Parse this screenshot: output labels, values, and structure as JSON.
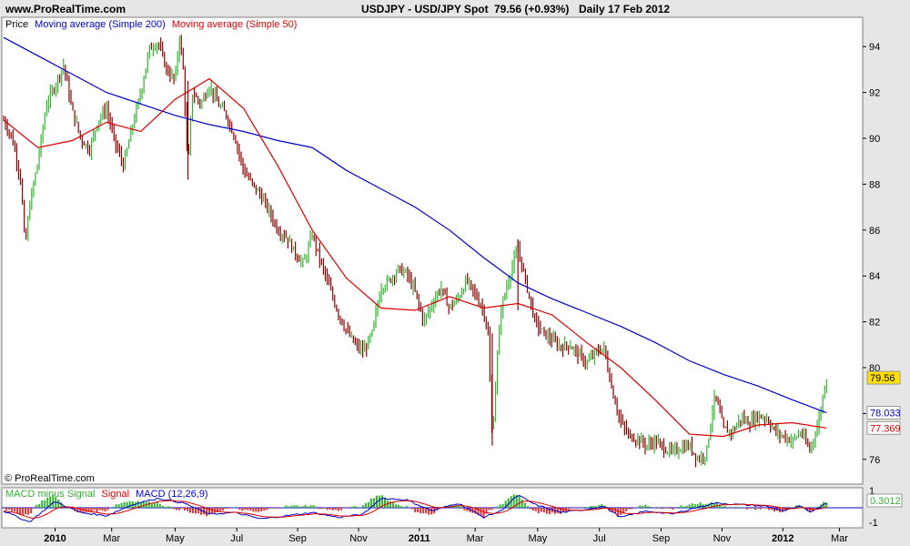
{
  "header": {
    "site": "www.ProRealTime.com",
    "instrument": "USDJPY - USD/JPY Spot",
    "price_change": "79.56 (+0.93%)",
    "period_date": "Daily  17 Feb 2012"
  },
  "copyright": "© ProRealTime.com",
  "colors": {
    "background": "#e6e6e6",
    "panel": "#ffffff",
    "up_bar": "#33b233",
    "down_bar": "#8b0000",
    "ma200": "#0000cc",
    "ma50": "#dd0000",
    "price_badge": "#ffe000",
    "macd_hist_pos": "#33b233",
    "macd_hist_neg": "#dd3333"
  },
  "chart_data": [
    {
      "type": "line",
      "panel": "price",
      "legend": [
        {
          "label": "Price",
          "color": "#000000"
        },
        {
          "label": "Moving average (Simple 200)",
          "color": "#0000cc"
        },
        {
          "label": "Moving average (Simple 50)",
          "color": "#dd0000"
        }
      ],
      "x_tick_labels": [
        {
          "label": "2010",
          "bold": true,
          "t": 0.06
        },
        {
          "label": "Mar",
          "bold": false,
          "t": 0.126
        },
        {
          "label": "May",
          "bold": false,
          "t": 0.2
        },
        {
          "label": "Jul",
          "bold": false,
          "t": 0.272
        },
        {
          "label": "Sep",
          "bold": false,
          "t": 0.343
        },
        {
          "label": "Nov",
          "bold": false,
          "t": 0.414
        },
        {
          "label": "2011",
          "bold": true,
          "t": 0.485
        },
        {
          "label": "Mar",
          "bold": false,
          "t": 0.55
        },
        {
          "label": "May",
          "bold": false,
          "t": 0.623
        },
        {
          "label": "Jul",
          "bold": false,
          "t": 0.695
        },
        {
          "label": "Sep",
          "bold": false,
          "t": 0.767
        },
        {
          "label": "Nov",
          "bold": false,
          "t": 0.838
        },
        {
          "label": "2012",
          "bold": true,
          "t": 0.909
        },
        {
          "label": "Mar",
          "bold": false,
          "t": 0.975
        }
      ],
      "y_ticks": [
        76,
        78,
        80,
        82,
        84,
        86,
        88,
        90,
        92,
        94
      ],
      "y_tick_labels": [
        "76",
        "",
        "80",
        "82",
        "84",
        "86",
        "88",
        "90",
        "92",
        "94"
      ],
      "ylim": [
        75,
        95.2
      ],
      "price_path": [
        [
          0.0,
          90.8
        ],
        [
          0.01,
          90.0
        ],
        [
          0.02,
          88.2
        ],
        [
          0.025,
          85.2
        ],
        [
          0.03,
          87.0
        ],
        [
          0.04,
          89.0
        ],
        [
          0.05,
          91.5
        ],
        [
          0.06,
          92.3
        ],
        [
          0.07,
          93.2
        ],
        [
          0.08,
          91.2
        ],
        [
          0.09,
          90.0
        ],
        [
          0.1,
          89.5
        ],
        [
          0.11,
          90.8
        ],
        [
          0.12,
          91.3
        ],
        [
          0.13,
          89.8
        ],
        [
          0.14,
          88.8
        ],
        [
          0.15,
          90.5
        ],
        [
          0.16,
          92.0
        ],
        [
          0.17,
          93.9
        ],
        [
          0.18,
          94.2
        ],
        [
          0.19,
          93.0
        ],
        [
          0.2,
          92.5
        ],
        [
          0.205,
          94.5
        ],
        [
          0.21,
          92.8
        ],
        [
          0.215,
          88.5
        ],
        [
          0.22,
          92.0
        ],
        [
          0.23,
          91.5
        ],
        [
          0.24,
          92.3
        ],
        [
          0.25,
          91.5
        ],
        [
          0.26,
          91.0
        ],
        [
          0.27,
          90.0
        ],
        [
          0.28,
          88.6
        ],
        [
          0.29,
          88.0
        ],
        [
          0.3,
          87.5
        ],
        [
          0.31,
          86.8
        ],
        [
          0.32,
          86.0
        ],
        [
          0.33,
          85.7
        ],
        [
          0.34,
          85.0
        ],
        [
          0.35,
          84.5
        ],
        [
          0.36,
          85.8
        ],
        [
          0.37,
          84.6
        ],
        [
          0.38,
          83.5
        ],
        [
          0.39,
          82.4
        ],
        [
          0.4,
          81.6
        ],
        [
          0.41,
          81.0
        ],
        [
          0.42,
          80.7
        ],
        [
          0.43,
          81.5
        ],
        [
          0.44,
          83.5
        ],
        [
          0.45,
          83.8
        ],
        [
          0.46,
          84.3
        ],
        [
          0.47,
          84.1
        ],
        [
          0.48,
          83.3
        ],
        [
          0.49,
          82.0
        ],
        [
          0.5,
          82.8
        ],
        [
          0.51,
          83.5
        ],
        [
          0.52,
          82.6
        ],
        [
          0.53,
          83.0
        ],
        [
          0.54,
          83.8
        ],
        [
          0.55,
          83.2
        ],
        [
          0.56,
          82.5
        ],
        [
          0.565,
          81.5
        ],
        [
          0.57,
          76.8
        ],
        [
          0.575,
          80.0
        ],
        [
          0.58,
          82.5
        ],
        [
          0.59,
          84.0
        ],
        [
          0.6,
          85.2
        ],
        [
          0.61,
          83.6
        ],
        [
          0.62,
          82.0
        ],
        [
          0.63,
          81.5
        ],
        [
          0.64,
          81.2
        ],
        [
          0.65,
          80.9
        ],
        [
          0.66,
          81.0
        ],
        [
          0.67,
          80.6
        ],
        [
          0.68,
          80.2
        ],
        [
          0.69,
          80.6
        ],
        [
          0.7,
          80.9
        ],
        [
          0.71,
          79.0
        ],
        [
          0.72,
          77.6
        ],
        [
          0.73,
          77.0
        ],
        [
          0.74,
          76.9
        ],
        [
          0.75,
          76.6
        ],
        [
          0.76,
          76.8
        ],
        [
          0.77,
          76.5
        ],
        [
          0.78,
          76.3
        ],
        [
          0.79,
          76.5
        ],
        [
          0.8,
          76.6
        ],
        [
          0.81,
          76.0
        ],
        [
          0.82,
          76.3
        ],
        [
          0.825,
          77.7
        ],
        [
          0.83,
          78.8
        ],
        [
          0.84,
          77.3
        ],
        [
          0.85,
          77.2
        ],
        [
          0.86,
          77.8
        ],
        [
          0.87,
          77.6
        ],
        [
          0.88,
          77.9
        ],
        [
          0.89,
          77.8
        ],
        [
          0.9,
          77.2
        ],
        [
          0.91,
          77.0
        ],
        [
          0.92,
          76.8
        ],
        [
          0.93,
          77.2
        ],
        [
          0.94,
          76.4
        ],
        [
          0.95,
          77.5
        ],
        [
          0.955,
          78.6
        ],
        [
          0.96,
          79.56
        ]
      ],
      "ma200_path": [
        [
          0.0,
          94.4
        ],
        [
          0.04,
          93.6
        ],
        [
          0.08,
          92.8
        ],
        [
          0.12,
          92.0
        ],
        [
          0.16,
          91.5
        ],
        [
          0.2,
          91.0
        ],
        [
          0.24,
          90.6
        ],
        [
          0.28,
          90.3
        ],
        [
          0.32,
          89.9
        ],
        [
          0.36,
          89.6
        ],
        [
          0.4,
          88.6
        ],
        [
          0.44,
          87.8
        ],
        [
          0.48,
          87.0
        ],
        [
          0.52,
          86.0
        ],
        [
          0.56,
          84.8
        ],
        [
          0.6,
          83.7
        ],
        [
          0.64,
          83.0
        ],
        [
          0.68,
          82.4
        ],
        [
          0.72,
          81.8
        ],
        [
          0.76,
          81.1
        ],
        [
          0.8,
          80.3
        ],
        [
          0.84,
          79.7
        ],
        [
          0.88,
          79.2
        ],
        [
          0.92,
          78.6
        ],
        [
          0.96,
          78.03
        ]
      ],
      "ma50_path": [
        [
          0.0,
          90.8
        ],
        [
          0.04,
          89.6
        ],
        [
          0.08,
          89.9
        ],
        [
          0.12,
          90.7
        ],
        [
          0.16,
          90.3
        ],
        [
          0.2,
          91.7
        ],
        [
          0.24,
          92.6
        ],
        [
          0.28,
          91.3
        ],
        [
          0.32,
          88.8
        ],
        [
          0.36,
          86.0
        ],
        [
          0.4,
          83.9
        ],
        [
          0.44,
          82.6
        ],
        [
          0.48,
          82.5
        ],
        [
          0.52,
          83.1
        ],
        [
          0.56,
          82.6
        ],
        [
          0.6,
          82.8
        ],
        [
          0.64,
          82.3
        ],
        [
          0.68,
          81.1
        ],
        [
          0.72,
          80.0
        ],
        [
          0.76,
          78.6
        ],
        [
          0.8,
          77.1
        ],
        [
          0.84,
          77.0
        ],
        [
          0.88,
          77.5
        ],
        [
          0.92,
          77.6
        ],
        [
          0.96,
          77.37
        ]
      ],
      "last_values": [
        {
          "label": "79.56",
          "value": 79.56,
          "color": "#ffe000",
          "text_color": "#000000"
        },
        {
          "label": "78.033",
          "value": 78.033,
          "color": "#ffffff",
          "text_color": "#0000cc"
        },
        {
          "label": "77.369",
          "value": 77.369,
          "color": "#ffffff",
          "text_color": "#dd0000"
        }
      ]
    },
    {
      "type": "bar",
      "panel": "macd",
      "legend": [
        {
          "label": "MACD minus Signal",
          "color": "#33b233"
        },
        {
          "label": "Signal",
          "color": "#dd0000"
        },
        {
          "label": "MACD (12,26,9)",
          "color": "#0000cc"
        }
      ],
      "y_tick_labels": [
        "1",
        "-1"
      ],
      "ylim": [
        -1.2,
        1.2
      ],
      "last_value": {
        "label": "0.3012",
        "value": 0.3012
      },
      "macd_path": [
        [
          0.0,
          -0.2
        ],
        [
          0.03,
          -0.9
        ],
        [
          0.06,
          0.4
        ],
        [
          0.09,
          -0.3
        ],
        [
          0.12,
          -0.5
        ],
        [
          0.15,
          0.2
        ],
        [
          0.18,
          0.6
        ],
        [
          0.21,
          0.3
        ],
        [
          0.24,
          -0.4
        ],
        [
          0.27,
          -0.3
        ],
        [
          0.3,
          -0.7
        ],
        [
          0.33,
          -0.5
        ],
        [
          0.36,
          -0.3
        ],
        [
          0.39,
          -0.6
        ],
        [
          0.42,
          -0.4
        ],
        [
          0.44,
          0.6
        ],
        [
          0.47,
          0.5
        ],
        [
          0.5,
          -0.2
        ],
        [
          0.53,
          0.3
        ],
        [
          0.56,
          -0.6
        ],
        [
          0.58,
          -0.2
        ],
        [
          0.6,
          0.8
        ],
        [
          0.62,
          0.2
        ],
        [
          0.65,
          -0.3
        ],
        [
          0.68,
          -0.1
        ],
        [
          0.7,
          0.1
        ],
        [
          0.72,
          -0.6
        ],
        [
          0.75,
          -0.2
        ],
        [
          0.78,
          -0.4
        ],
        [
          0.8,
          -0.1
        ],
        [
          0.83,
          0.3
        ],
        [
          0.86,
          0.2
        ],
        [
          0.89,
          0.1
        ],
        [
          0.91,
          -0.2
        ],
        [
          0.93,
          0.1
        ],
        [
          0.94,
          -0.3
        ],
        [
          0.96,
          0.3
        ]
      ]
    }
  ]
}
